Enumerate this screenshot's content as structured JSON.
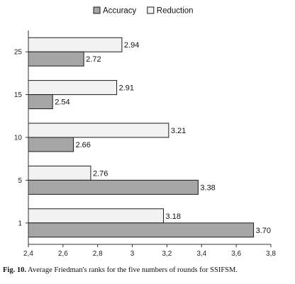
{
  "colors": {
    "accuracy_fill": "#a6a6a6",
    "reduction_fill": "#f2f2f2",
    "bar_stroke": "#1a1a1a"
  },
  "caption": {
    "figure_label": "Fig. 10.",
    "text": "Average Friedman's ranks for the five numbers of rounds for SSIFSM."
  },
  "chart_data": {
    "type": "bar",
    "orientation": "horizontal",
    "categories": [
      "1",
      "5",
      "10",
      "15",
      "25"
    ],
    "series": [
      {
        "name": "Accuracy",
        "values": [
          3.7,
          3.38,
          2.66,
          2.54,
          2.72
        ],
        "labels": [
          "3.70",
          "3.38",
          "2.66",
          "2.54",
          "2.72"
        ]
      },
      {
        "name": "Reduction",
        "values": [
          3.18,
          2.76,
          3.21,
          2.91,
          2.94
        ],
        "labels": [
          "3.18",
          "2.76",
          "3.21",
          "2.91",
          "2.94"
        ]
      }
    ],
    "xlim": [
      2.4,
      3.8
    ],
    "x_ticks": [
      "2,4",
      "2,6",
      "2,8",
      "3",
      "3,2",
      "3,4",
      "3,6",
      "3,8"
    ],
    "x_tick_values": [
      2.4,
      2.6,
      2.8,
      3.0,
      3.2,
      3.4,
      3.6,
      3.8
    ],
    "legend": "top-center",
    "grid": false
  }
}
